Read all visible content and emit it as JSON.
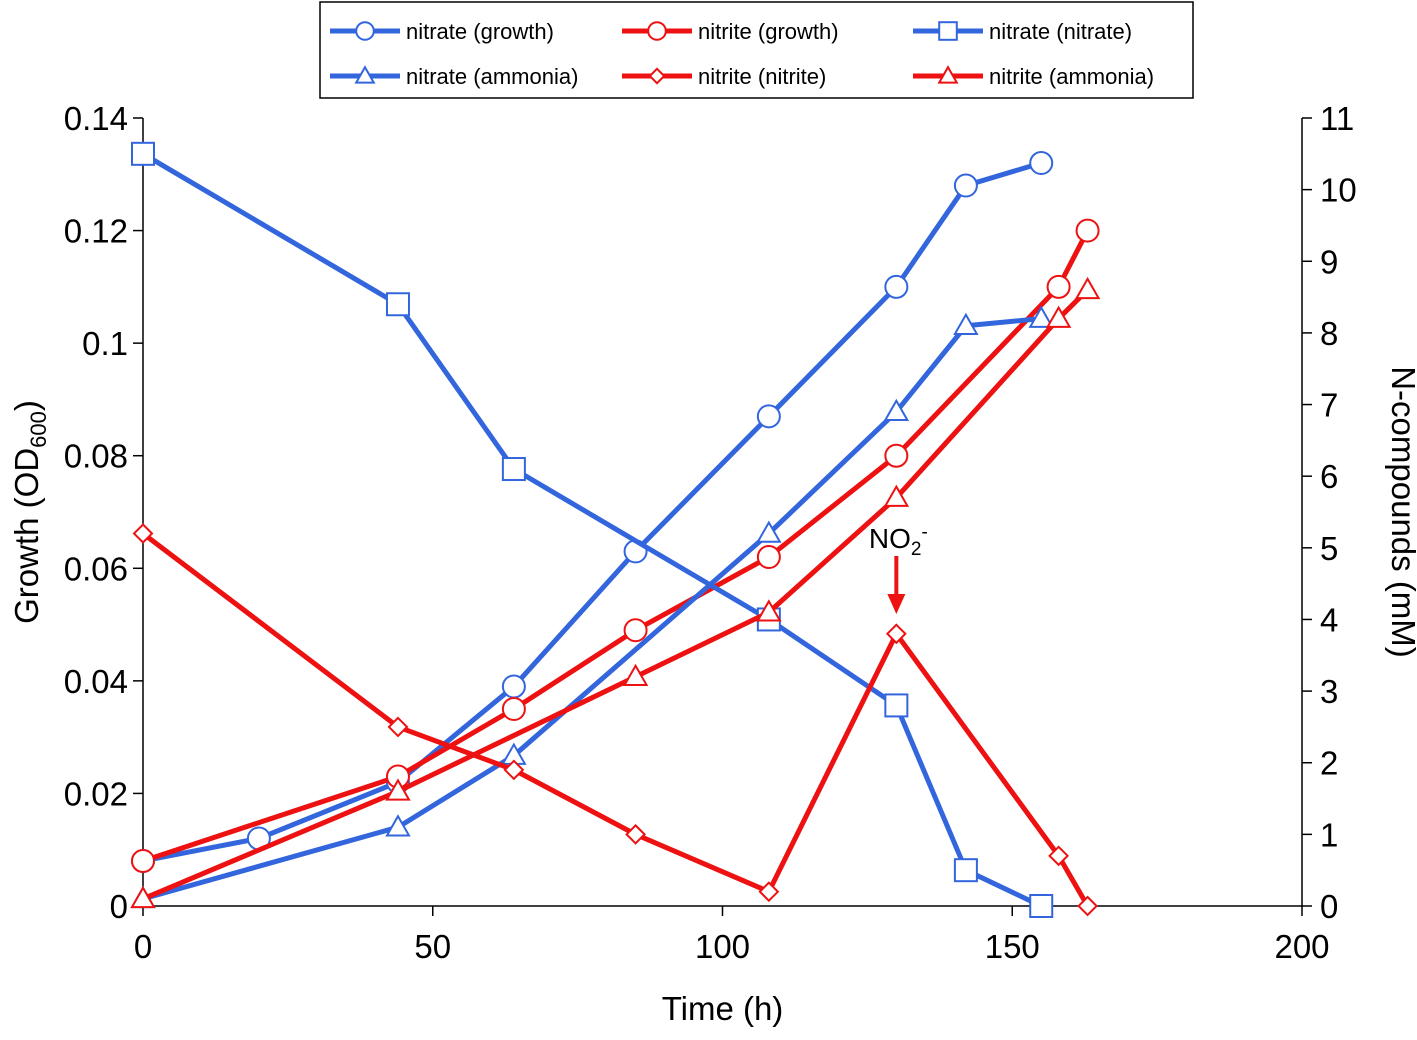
{
  "chart_data": {
    "type": "line",
    "title": "",
    "xlabel": "Time (h)",
    "ylabel_left": {
      "main": "Growth (OD",
      "sub": "600",
      "close": ")"
    },
    "ylabel_right": "N-compounds (mM)",
    "xlim": [
      0,
      200
    ],
    "ylim_left": [
      0,
      0.14
    ],
    "ylim_right": [
      0,
      11
    ],
    "x_ticks": [
      0,
      50,
      100,
      150,
      200
    ],
    "x_tick_labels": [
      "0",
      "50",
      "100",
      "150",
      "200"
    ],
    "y_left_ticks": [
      0,
      0.02,
      0.04,
      0.06,
      0.08,
      0.1,
      0.12,
      0.14
    ],
    "y_left_tick_labels": [
      "0",
      "0.02",
      "0.04",
      "0.06",
      "0.08",
      "0.1",
      "0.12",
      "0.14"
    ],
    "y_right_ticks": [
      0,
      1,
      2,
      3,
      4,
      5,
      6,
      7,
      8,
      9,
      10,
      11
    ],
    "y_right_tick_labels": [
      "0",
      "1",
      "2",
      "3",
      "4",
      "5",
      "6",
      "7",
      "8",
      "9",
      "10",
      "11"
    ],
    "grid": false,
    "legend_position": "top-center",
    "colors": {
      "nitrate": "#3366dd",
      "nitrite": "#ee1111"
    },
    "series": [
      {
        "name": "nitrate (growth)",
        "color": "#3366dd",
        "marker": "circle",
        "axis": "left",
        "x": [
          0,
          20,
          44,
          64,
          85,
          108,
          130,
          142,
          155
        ],
        "y": [
          0.008,
          0.012,
          0.022,
          0.039,
          0.063,
          0.087,
          0.11,
          0.128,
          0.132
        ]
      },
      {
        "name": "nitrite (growth)",
        "color": "#ee1111",
        "marker": "circle",
        "axis": "left",
        "x": [
          0,
          44,
          64,
          85,
          108,
          130,
          158,
          163
        ],
        "y": [
          0.008,
          0.023,
          0.035,
          0.049,
          0.062,
          0.08,
          0.11,
          0.12
        ]
      },
      {
        "name": "nitrate (nitrate)",
        "color": "#3366dd",
        "marker": "square",
        "axis": "right",
        "x": [
          0,
          44,
          64,
          108,
          130,
          142,
          155
        ],
        "y": [
          10.5,
          8.4,
          6.1,
          4.0,
          2.8,
          0.5,
          0.0
        ]
      },
      {
        "name": "nitrate (ammonia)",
        "color": "#3366dd",
        "marker": "triangle",
        "axis": "right",
        "x": [
          0,
          44,
          64,
          108,
          130,
          142,
          155
        ],
        "y": [
          0.1,
          1.1,
          2.1,
          5.2,
          6.9,
          8.1,
          8.2
        ]
      },
      {
        "name": "nitrite (nitrite)",
        "color": "#ee1111",
        "marker": "diamond",
        "axis": "right",
        "x": [
          0,
          44,
          64,
          85,
          108,
          130,
          158,
          163
        ],
        "y": [
          5.2,
          2.5,
          1.9,
          1.0,
          0.2,
          3.8,
          0.7,
          0.0
        ]
      },
      {
        "name": "nitrite (ammonia)",
        "color": "#ee1111",
        "marker": "triangle",
        "axis": "right",
        "x": [
          0,
          44,
          85,
          108,
          130,
          158,
          163
        ],
        "y": [
          0.1,
          1.6,
          3.2,
          4.1,
          5.7,
          8.2,
          8.6
        ]
      }
    ],
    "annotations": [
      {
        "text": "NO",
        "sub": "2",
        "sup": "-",
        "x": 130,
        "y_right": 3.8,
        "arrow": "down"
      }
    ]
  }
}
